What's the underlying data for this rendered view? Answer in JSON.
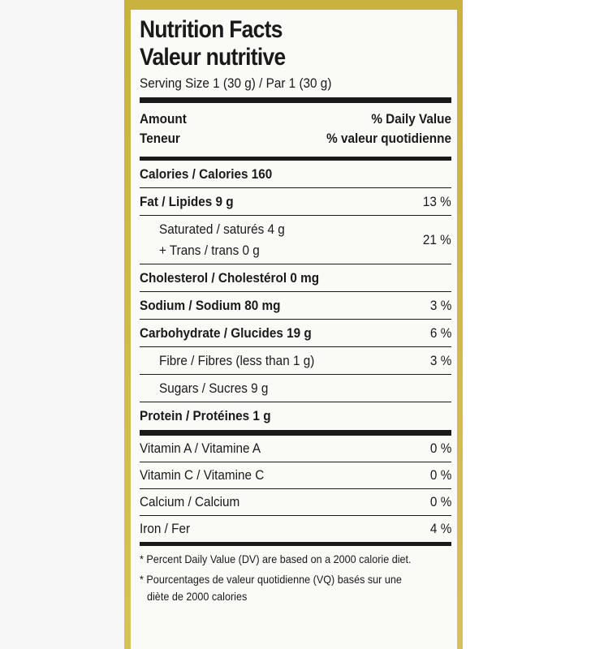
{
  "title_en": "Nutrition Facts",
  "title_fr": "Valeur nutritive",
  "serving": "Serving Size 1 (30 g) / Par 1 (30 g)",
  "header": {
    "amount_en": "Amount",
    "amount_fr": "Teneur",
    "dv_en": "% Daily Value",
    "dv_fr": "% valeur quotidienne"
  },
  "calories": {
    "label": "Calories / Calories 160"
  },
  "fat": {
    "label": "Fat / Lipides 9 g",
    "dv": "13 %"
  },
  "saturated": {
    "label1": "Saturated / saturés 4 g",
    "label2": "+ Trans / trans 0 g",
    "dv": "21 %"
  },
  "cholesterol": {
    "label": "Cholesterol / Cholestérol 0 mg"
  },
  "sodium": {
    "label": "Sodium / Sodium 80 mg",
    "dv": "3 %"
  },
  "carbohydrate": {
    "label": "Carbohydrate / Glucides 19 g",
    "dv": "6 %"
  },
  "fibre": {
    "label": "Fibre / Fibres (less than 1 g)",
    "dv": "3 %"
  },
  "sugars": {
    "label": "Sugars / Sucres 9 g"
  },
  "protein": {
    "label": "Protein / Protéines 1 g"
  },
  "vitamins": [
    {
      "label": "Vitamin A / Vitamine A",
      "dv": "0 %"
    },
    {
      "label": "Vitamin C / Vitamine C",
      "dv": "0 %"
    },
    {
      "label": "Calcium / Calcium",
      "dv": "0 %"
    },
    {
      "label": "Iron / Fer",
      "dv": "4 %"
    }
  ],
  "footnote_en": "* Percent Daily Value (DV) are based on a 2000 calorie diet.",
  "footnote_fr_1": "* Pourcentages de valeur quotidienne (VQ) basés sur une",
  "footnote_fr_2": "diète de 2000 calories",
  "colors": {
    "box_yellow": "#d0bb4c",
    "ink": "#1a1a1a",
    "panel": "#fafaf7"
  }
}
